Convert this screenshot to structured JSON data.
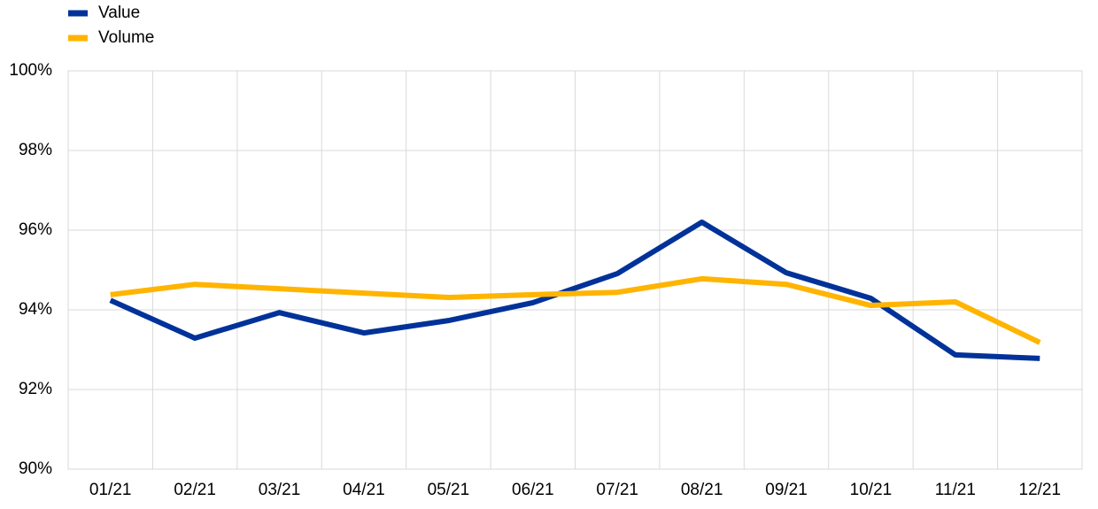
{
  "chart_data": {
    "type": "line",
    "categories": [
      "01/21",
      "02/21",
      "03/21",
      "04/21",
      "05/21",
      "06/21",
      "07/21",
      "08/21",
      "09/21",
      "10/21",
      "11/21",
      "12/21"
    ],
    "series": [
      {
        "name": "Value",
        "color": "#003299",
        "values": [
          94.24,
          93.29,
          93.93,
          93.42,
          93.73,
          94.18,
          94.91,
          96.2,
          94.93,
          94.29,
          92.87,
          92.78
        ]
      },
      {
        "name": "Volume",
        "color": "#ffb400",
        "values": [
          94.38,
          94.64,
          94.53,
          94.42,
          94.31,
          94.38,
          94.44,
          94.78,
          94.64,
          94.11,
          94.2,
          93.18
        ]
      }
    ],
    "ylim": [
      90,
      100
    ],
    "yticks": [
      {
        "value": 90,
        "label": "90%"
      },
      {
        "value": 92,
        "label": "92%"
      },
      {
        "value": 94,
        "label": "94%"
      },
      {
        "value": 96,
        "label": "96%"
      },
      {
        "value": 98,
        "label": "98%"
      },
      {
        "value": 100,
        "label": "100%"
      }
    ],
    "grid": true,
    "legend": "top-left"
  }
}
